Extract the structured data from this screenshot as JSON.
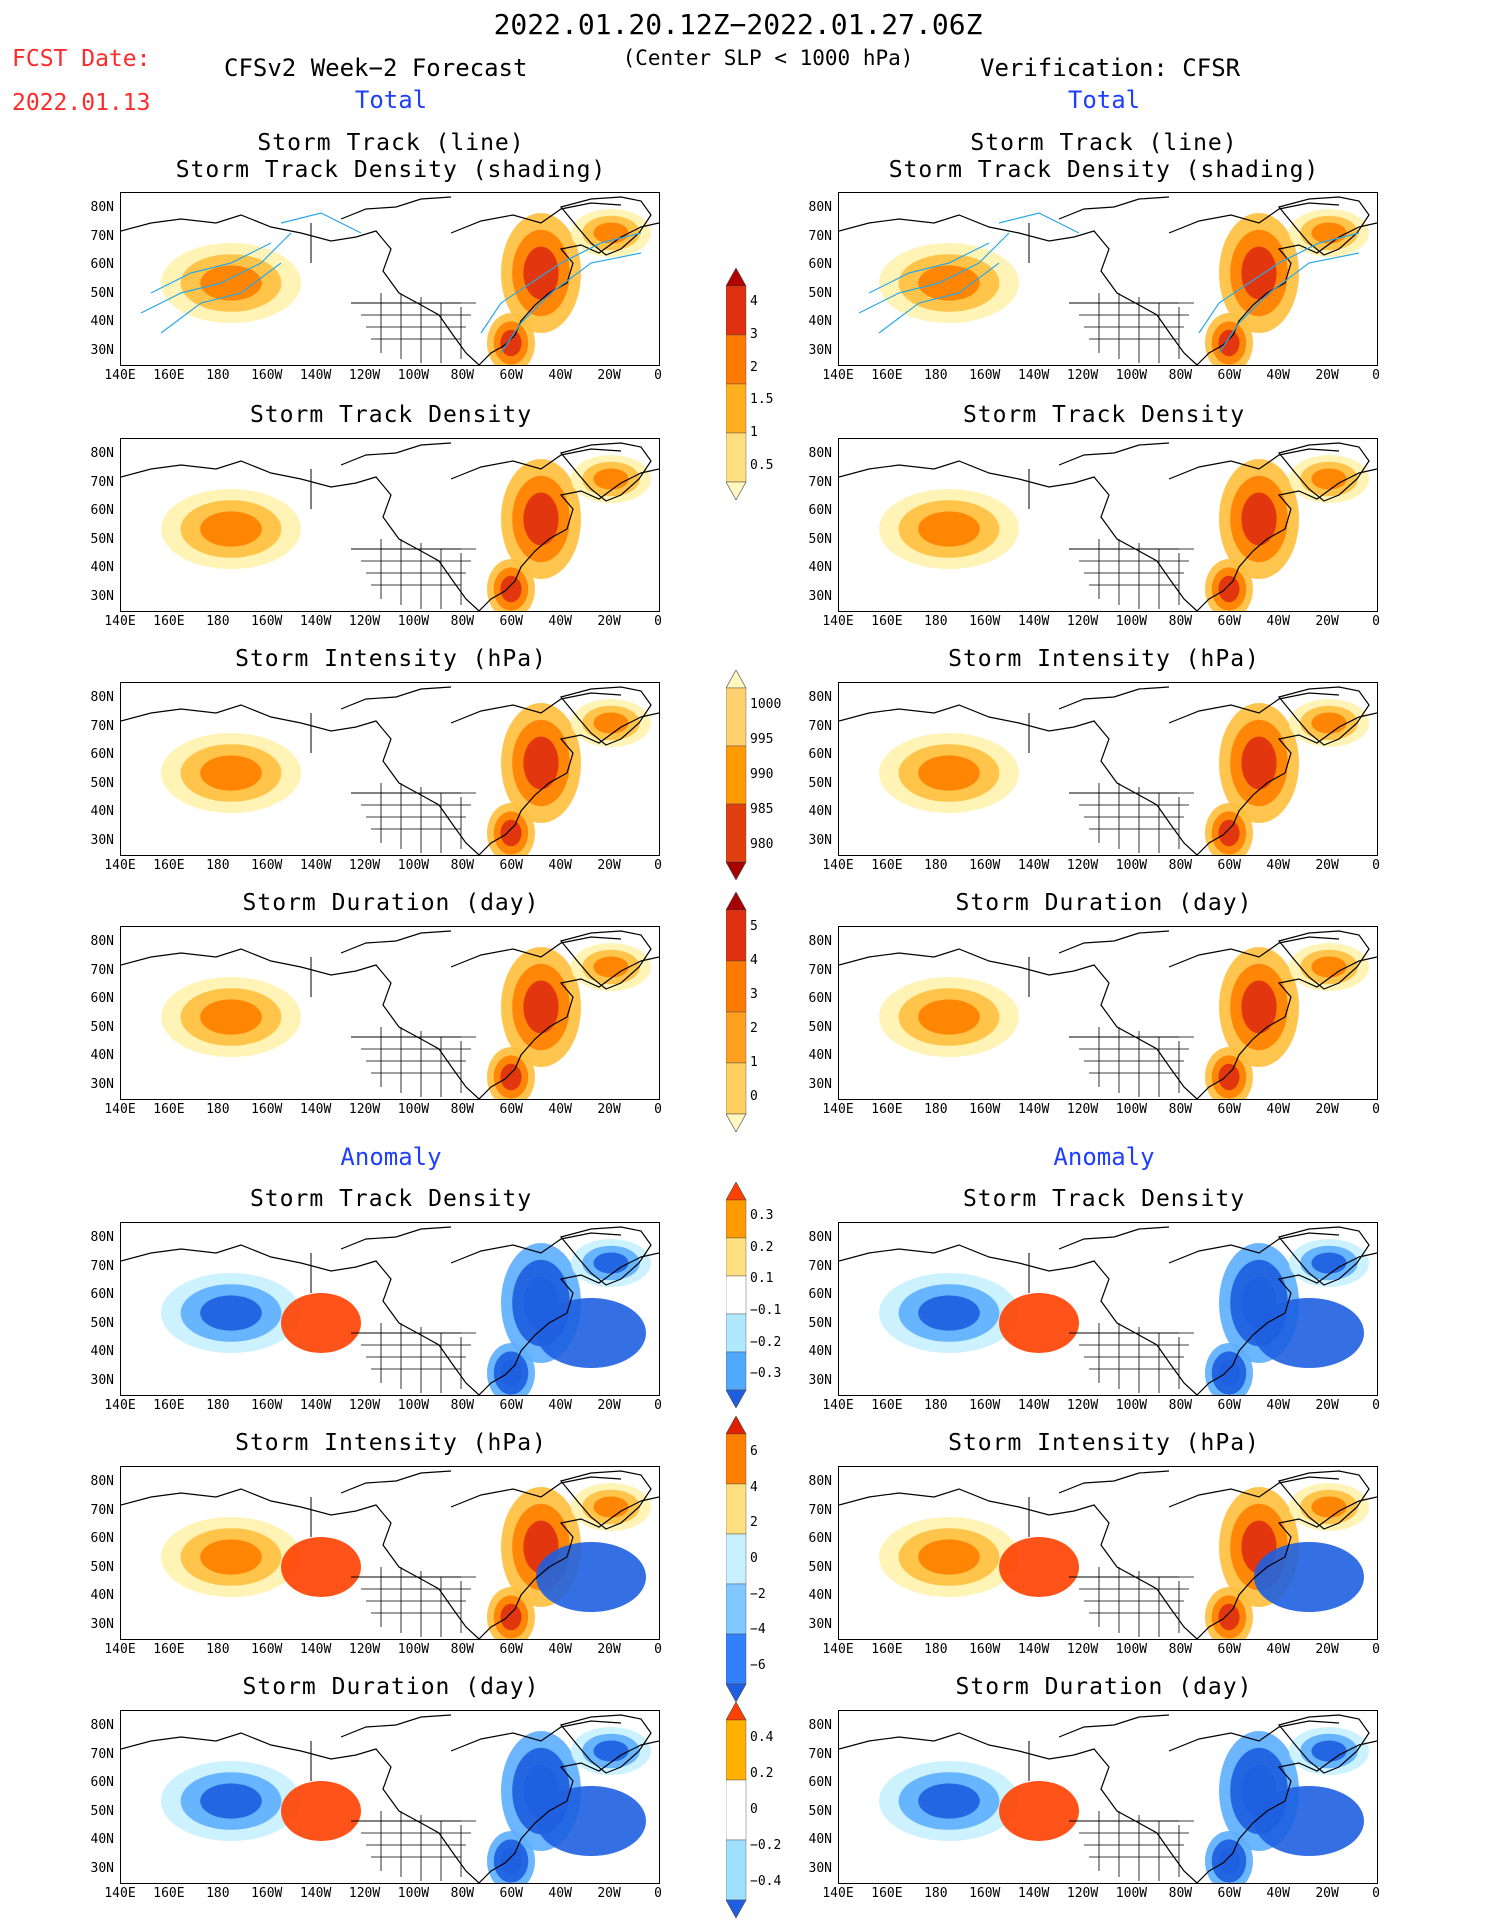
{
  "header": {
    "period": "2022.01.20.12Z−2022.01.27.06Z",
    "fcst_label": "FCST Date:",
    "fcst_date": "2022.01.13",
    "model": "CFSv2 Week−2 Forecast",
    "subtitle": "(Center SLP < 1000 hPa)",
    "verification": "Verification: CFSR",
    "total_left": "Total",
    "total_right": "Total",
    "anomaly_left": "Anomaly",
    "anomaly_right": "Anomaly"
  },
  "axes": {
    "lat_labels": [
      "80N",
      "70N",
      "60N",
      "50N",
      "40N",
      "30N"
    ],
    "lon_labels": [
      "140E",
      "160E",
      "180",
      "160W",
      "140W",
      "120W",
      "100W",
      "80W",
      "60W",
      "40W",
      "20W",
      "0"
    ]
  },
  "panel_titles": {
    "track_line": "Storm Track (line)",
    "track_shading": "Storm Track Density (shading)",
    "density": "Storm Track Density",
    "intensity": "Storm Intensity (hPa)",
    "duration": "Storm Duration (day)"
  },
  "colorbars": {
    "density_total": {
      "labels": [
        "4",
        "3",
        "2",
        "1.5",
        "1",
        "0.5"
      ],
      "colors": [
        "#b00000",
        "#e03010",
        "#ff7a00",
        "#ffb020",
        "#ffe080",
        "#fff6c0"
      ]
    },
    "intensity_total": {
      "labels": [
        "1000",
        "995",
        "990",
        "985",
        "980"
      ],
      "colors": [
        "#fff6c0",
        "#ffd070",
        "#ff9a00",
        "#e04010",
        "#a80000"
      ]
    },
    "duration_total": {
      "labels": [
        "5",
        "4",
        "3",
        "2",
        "1",
        "0"
      ],
      "colors": [
        "#a80000",
        "#e03010",
        "#ff7a00",
        "#ffa020",
        "#ffd060",
        "#fff6c0"
      ]
    },
    "density_anom": {
      "labels": [
        "0.3",
        "0.2",
        "0.1",
        "−0.1",
        "−0.2",
        "−0.3"
      ],
      "colors": [
        "#ff4000",
        "#ff9a00",
        "#ffe080",
        "#ffffff",
        "#b0e8ff",
        "#50a8ff",
        "#1e5fe0"
      ]
    },
    "intensity_anom": {
      "labels": [
        "6",
        "4",
        "2",
        "0",
        "−2",
        "−4",
        "−6"
      ],
      "colors": [
        "#e02000",
        "#ff8000",
        "#ffe080",
        "#c8f0ff",
        "#80c8ff",
        "#3080ff",
        "#1e5fe0"
      ]
    },
    "duration_anom": {
      "labels": [
        "0.4",
        "0.2",
        "0",
        "−0.2",
        "−0.4"
      ],
      "colors": [
        "#ff4000",
        "#ffb000",
        "#ffffff",
        "#a0e0ff",
        "#1e5fe0"
      ]
    }
  },
  "map_colors": {
    "land_line": "#000000",
    "track_line": "#2aa8e8"
  }
}
